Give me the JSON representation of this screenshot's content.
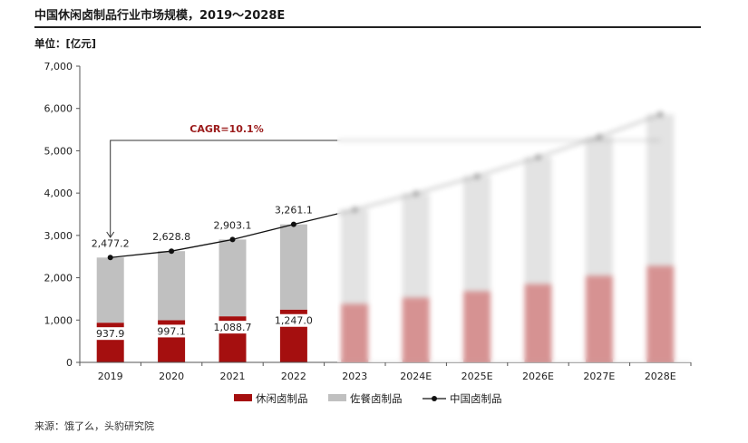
{
  "title": "中国休闲卤制品行业市场规模，2019～2028E",
  "unit_label": "单位：[亿元]",
  "source_label": "来源：饿了么，头豹研究院",
  "colors": {
    "leisure": "#a50f0f",
    "catering": "#c0c0c0",
    "line": "#111111"
  },
  "chart_data": {
    "type": "bar",
    "stacked": true,
    "categories": [
      "2019",
      "2020",
      "2021",
      "2022",
      "2023",
      "2024E",
      "2025E",
      "2026E",
      "2027E",
      "2028E"
    ],
    "series": [
      {
        "name": "休闲卤制品",
        "type": "bar",
        "color": "#a50f0f",
        "values": [
          937.9,
          997.1,
          1088.7,
          1247.0,
          1380,
          1530,
          1680,
          1850,
          2050,
          2280
        ]
      },
      {
        "name": "佐餐卤制品",
        "type": "bar",
        "color": "#c0c0c0",
        "values": [
          1539.3,
          1631.7,
          1814.4,
          2014.1,
          2230,
          2460,
          2720,
          3000,
          3280,
          3580
        ]
      },
      {
        "name": "中国卤制品",
        "type": "line",
        "color": "#111111",
        "values": [
          2477.2,
          2628.8,
          2903.1,
          3261.1,
          3610,
          3990,
          4400,
          4850,
          5330,
          5860
        ]
      }
    ],
    "bottom_labels": [
      "937.9",
      "997.1",
      "1,088.7",
      "1,247.0"
    ],
    "total_labels": [
      "2,477.2",
      "2,628.8",
      "2,903.1",
      "3,261.1"
    ],
    "annotation": "CAGR=10.1%",
    "ylim": [
      0,
      7000
    ],
    "yticks": [
      0,
      1000,
      2000,
      3000,
      4000,
      5000,
      6000,
      7000
    ],
    "ytick_labels": [
      "0",
      "1,000",
      "2,000",
      "3,000",
      "4,000",
      "5,000",
      "6,000",
      "7,000"
    ],
    "legend_position": "bottom",
    "grid": false
  }
}
